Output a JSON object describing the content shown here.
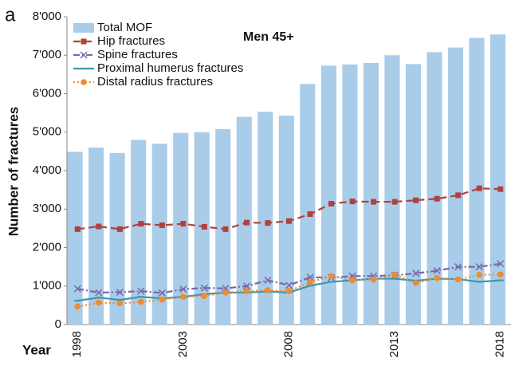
{
  "chart_data": {
    "type": "bar",
    "panel_label": "a",
    "annotation": "Men 45+",
    "y_label": "Number of  fractures",
    "x_label": "Year",
    "categories": [
      "1998",
      null,
      null,
      null,
      null,
      "2003",
      null,
      null,
      null,
      null,
      "2008",
      null,
      null,
      null,
      null,
      "2013",
      null,
      null,
      null,
      null,
      "2018"
    ],
    "series": [
      {
        "name": "Total MOF",
        "type": "bar",
        "color": "#a9cce9",
        "values": [
          4490,
          4600,
          4460,
          4800,
          4700,
          4980,
          5000,
          5080,
          5400,
          5530,
          5430,
          6250,
          6730,
          6760,
          6800,
          7000,
          6770,
          7080,
          7200,
          7450,
          7540
        ]
      },
      {
        "name": "Hip fractures",
        "type": "line",
        "color": "#b0413e",
        "dash": "9 5",
        "marker": "square",
        "values": [
          2480,
          2550,
          2480,
          2620,
          2580,
          2620,
          2540,
          2480,
          2650,
          2640,
          2690,
          2870,
          3140,
          3200,
          3190,
          3190,
          3230,
          3270,
          3360,
          3540,
          3520
        ]
      },
      {
        "name": "Spine fractures",
        "type": "line",
        "color": "#7b66a8",
        "dash": "8 3 2 3",
        "marker": "cross",
        "values": [
          930,
          830,
          840,
          870,
          820,
          920,
          950,
          940,
          1000,
          1150,
          1020,
          1230,
          1220,
          1260,
          1260,
          1280,
          1330,
          1400,
          1500,
          1500,
          1580
        ]
      },
      {
        "name": "Proximal humerus fractures",
        "type": "line",
        "color": "#3d97ad",
        "dash": "none",
        "marker": "dash",
        "values": [
          620,
          700,
          640,
          720,
          680,
          720,
          790,
          830,
          830,
          860,
          830,
          1010,
          1110,
          1150,
          1190,
          1190,
          1140,
          1190,
          1180,
          1110,
          1150
        ]
      },
      {
        "name": "Distal radius fractures",
        "type": "line",
        "color": "#f08c2e",
        "dash": "2 3",
        "marker": "circle",
        "values": [
          470,
          570,
          550,
          590,
          650,
          720,
          740,
          830,
          870,
          890,
          870,
          1100,
          1260,
          1150,
          1170,
          1300,
          1080,
          1210,
          1170,
          1290,
          1300
        ]
      }
    ],
    "ylim": [
      0,
      8000
    ],
    "yticks": [
      0,
      {
        "value": 1000,
        "label": "1'000"
      },
      {
        "value": 2000,
        "label": "2'000"
      },
      {
        "value": 3000,
        "label": "3'000"
      },
      {
        "value": 4000,
        "label": "4'000"
      },
      {
        "value": 5000,
        "label": "5'000"
      },
      {
        "value": 6000,
        "label": "6'000"
      },
      {
        "value": 7000,
        "label": "7'000"
      },
      {
        "value": 8000,
        "label": "8'000"
      }
    ],
    "grid": false,
    "legend": "top-left"
  }
}
